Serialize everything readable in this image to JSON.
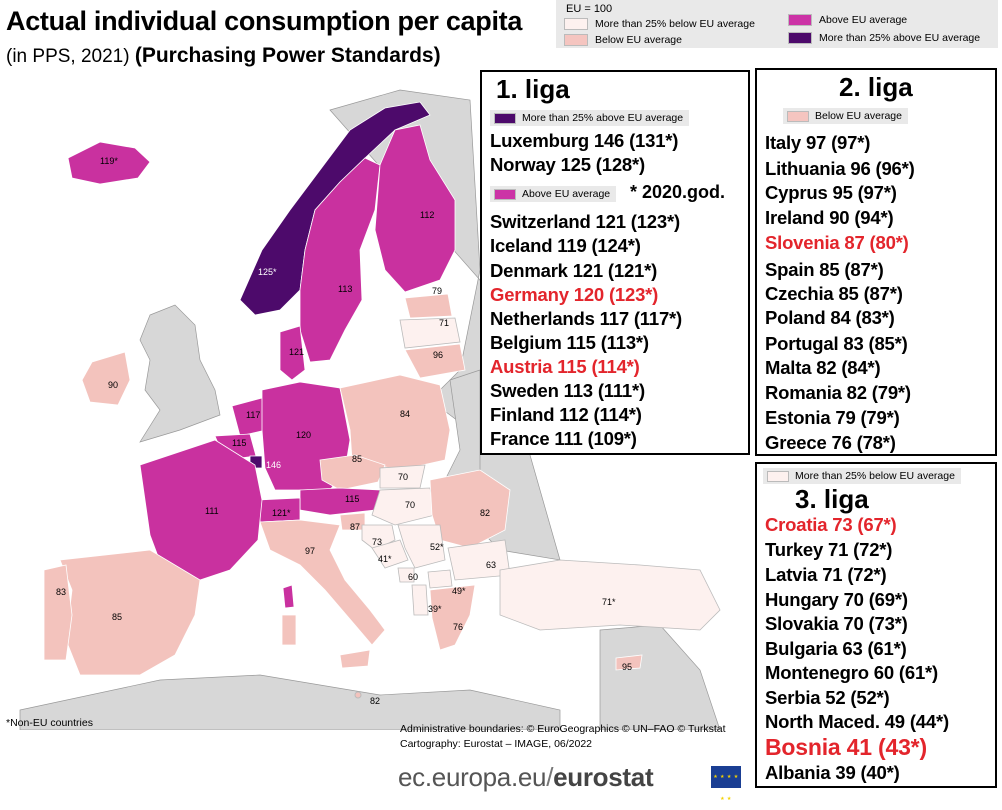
{
  "header": {
    "title": "Actual individual consumption per capita",
    "subtitle": "(in PPS, 2021)",
    "subtitle_extra": "(Purchasing Power Standards)"
  },
  "legend": {
    "eu_note": "EU = 100",
    "items": [
      {
        "label": "More than 25% below EU average",
        "color": "#fdf1ef"
      },
      {
        "label": "Below EU average",
        "color": "#f5c5c0"
      },
      {
        "label": "Above EU average",
        "color": "#cc33a6"
      },
      {
        "label": "More than 25% above EU average",
        "color": "#4d0a6b"
      }
    ]
  },
  "colors": {
    "above25": "#4d0a6b",
    "above": "#c9319f",
    "below": "#f3c3bd",
    "below25": "#fdf1ef",
    "nonEU_gray": "#d7d7d7",
    "sea": "#ffffff",
    "highlight_red": "#e3252c"
  },
  "map_labels": [
    {
      "text": "119*"
    },
    {
      "text": "125*"
    },
    {
      "text": "113"
    },
    {
      "text": "112"
    },
    {
      "text": "90"
    },
    {
      "text": "121"
    },
    {
      "text": "79"
    },
    {
      "text": "71"
    },
    {
      "text": "96"
    },
    {
      "text": "117"
    },
    {
      "text": "120"
    },
    {
      "text": "115"
    },
    {
      "text": "146"
    },
    {
      "text": "84"
    },
    {
      "text": "85"
    },
    {
      "text": "111"
    },
    {
      "text": "121*"
    },
    {
      "text": "115"
    },
    {
      "text": "70"
    },
    {
      "text": "70"
    },
    {
      "text": "82"
    },
    {
      "text": "87"
    },
    {
      "text": "73"
    },
    {
      "text": "97"
    },
    {
      "text": "41*"
    },
    {
      "text": "52*"
    },
    {
      "text": "63"
    },
    {
      "text": "60"
    },
    {
      "text": "49*"
    },
    {
      "text": "39*"
    },
    {
      "text": "76"
    },
    {
      "text": "71*"
    },
    {
      "text": "83"
    },
    {
      "text": "85"
    },
    {
      "text": "95"
    },
    {
      "text": "82"
    }
  ],
  "liga1": {
    "title": "1. liga",
    "tag_top": "More than 25% above EU average",
    "tag_mid": "Above EU average",
    "note": "* 2020.god.",
    "rows": [
      "Luxemburg  146 (131*)",
      "Norway 125 (128*)",
      "Switzerland  121 (123*)",
      "Iceland  119 (124*)",
      "Denmark 121 (121*)",
      "Germany 120 (123*)",
      "Netherlands 117 (117*)",
      "Belgium 115 (113*)",
      "Austria 115 (114*)",
      "Sweden 113 (111*)",
      "Finland 112 (114*)",
      "France 111 (109*)"
    ]
  },
  "liga2": {
    "title": "2. liga",
    "tag": "Below EU average",
    "rows": [
      "Italy 97 (97*)",
      "Lithuania 96 (96*)",
      "Cyprus 95 (97*)",
      "Ireland 90 (94*)",
      "Slovenia 87 (80*)",
      "Spain 85 (87*)",
      "Czechia 85 (87*)",
      "Poland 84 (83*)",
      "Portugal 83 (85*)",
      "Malta 82 (84*)",
      "Romania 82 (79*)",
      "Estonia 79 (79*)",
      "Greece  76 (78*)"
    ]
  },
  "liga3": {
    "title": "3. liga",
    "tag": "More than 25% below EU average",
    "rows": [
      "Croatia 73 (67*)",
      "Turkey 71 (72*)",
      "Latvia 71 (72*)",
      "Hungary 70 (69*)",
      "Slovakia 70 (73*)",
      "Bulgaria 63 (61*)",
      "Montenegro 60 (61*)",
      "Serbia  52 (52*)",
      "North Maced. 49 (44*)",
      "Bosnia 41 (43*)",
      "Albania  39 (40*)"
    ]
  },
  "footer": {
    "non_eu": "*Non-EU countries",
    "admin_line1": "Administrative boundaries: © EuroGeographics © UN–FAO © Turkstat",
    "admin_line2": "Cartography: Eurostat – IMAGE, 06/2022",
    "brand_pre": "ec.europa.eu",
    "brand_sep": "/",
    "brand_post": "eurostat"
  }
}
